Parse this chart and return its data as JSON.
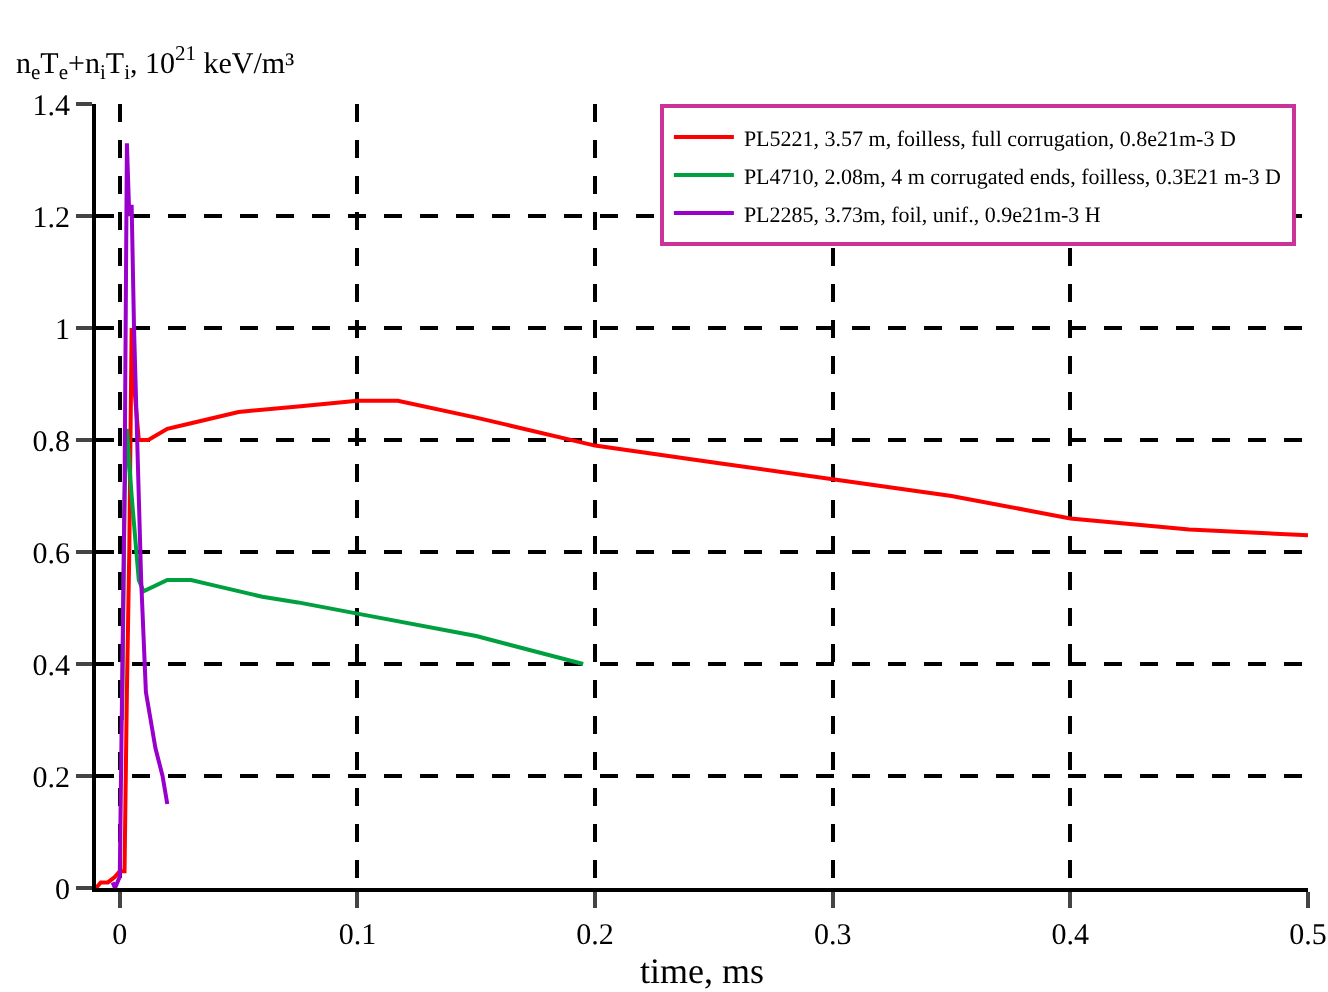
{
  "chart_data": {
    "type": "line",
    "ylabel": "n$_{e}$T$_{e}$+n$_{i}$T$_{i}$, 10$^{21}$ keV/m³",
    "xlabel": "time, ms",
    "xlim": [
      -0.01,
      0.5
    ],
    "xticks": [
      0,
      0.1,
      0.2,
      0.3,
      0.4,
      0.5
    ],
    "ylim": [
      0,
      1.4
    ],
    "yticks": [
      0,
      0.2,
      0.4,
      0.6,
      0.8,
      1,
      1.2,
      1.4
    ],
    "grid": true,
    "legend": "top right",
    "line_style": "solid",
    "marker": "none",
    "series": [
      {
        "name": "PL5221, 3.57 m, foilless, full corrugation, 0.8e21m-3 D",
        "color": "#ff0000",
        "x": [
          -0.01,
          -0.008,
          -0.005,
          -0.002,
          0,
          0.002,
          0.003,
          0.004,
          0.005,
          0.006,
          0.008,
          0.012,
          0.02,
          0.03,
          0.05,
          0.075,
          0.1,
          0.117,
          0.15,
          0.2,
          0.25,
          0.3,
          0.35,
          0.4,
          0.45,
          0.5
        ],
        "values": [
          0,
          0.01,
          0.01,
          0.02,
          0.03,
          0.03,
          0.35,
          0.6,
          1.0,
          0.9,
          0.8,
          0.8,
          0.82,
          0.83,
          0.85,
          0.86,
          0.87,
          0.87,
          0.84,
          0.79,
          0.76,
          0.73,
          0.7,
          0.66,
          0.64,
          0.63
        ]
      },
      {
        "name": "PL4710, 2.08m, 4 m corrugated ends, foilless, 0.3E21 m-3 D",
        "color": "#00a040",
        "x": [
          0.001,
          0.002,
          0.003,
          0.005,
          0.008,
          0.01,
          0.02,
          0.03,
          0.04,
          0.06,
          0.075,
          0.1,
          0.15,
          0.195
        ],
        "values": [
          0.3,
          0.7,
          0.82,
          0.7,
          0.55,
          0.53,
          0.55,
          0.55,
          0.54,
          0.52,
          0.51,
          0.49,
          0.45,
          0.4
        ]
      },
      {
        "name": "PL2285, 3.73m, foil, unif., 0.9e21m-3 H",
        "color": "#9900cc",
        "x": [
          -0.003,
          -0.002,
          0,
          0.002,
          0.003,
          0.004,
          0.005,
          0.006,
          0.007,
          0.009,
          0.011,
          0.013,
          0.015,
          0.018,
          0.02
        ],
        "values": [
          0.01,
          0,
          0.02,
          0.7,
          1.33,
          1.2,
          1.22,
          1.0,
          0.85,
          0.55,
          0.35,
          0.3,
          0.25,
          0.2,
          0.15
        ]
      }
    ]
  }
}
